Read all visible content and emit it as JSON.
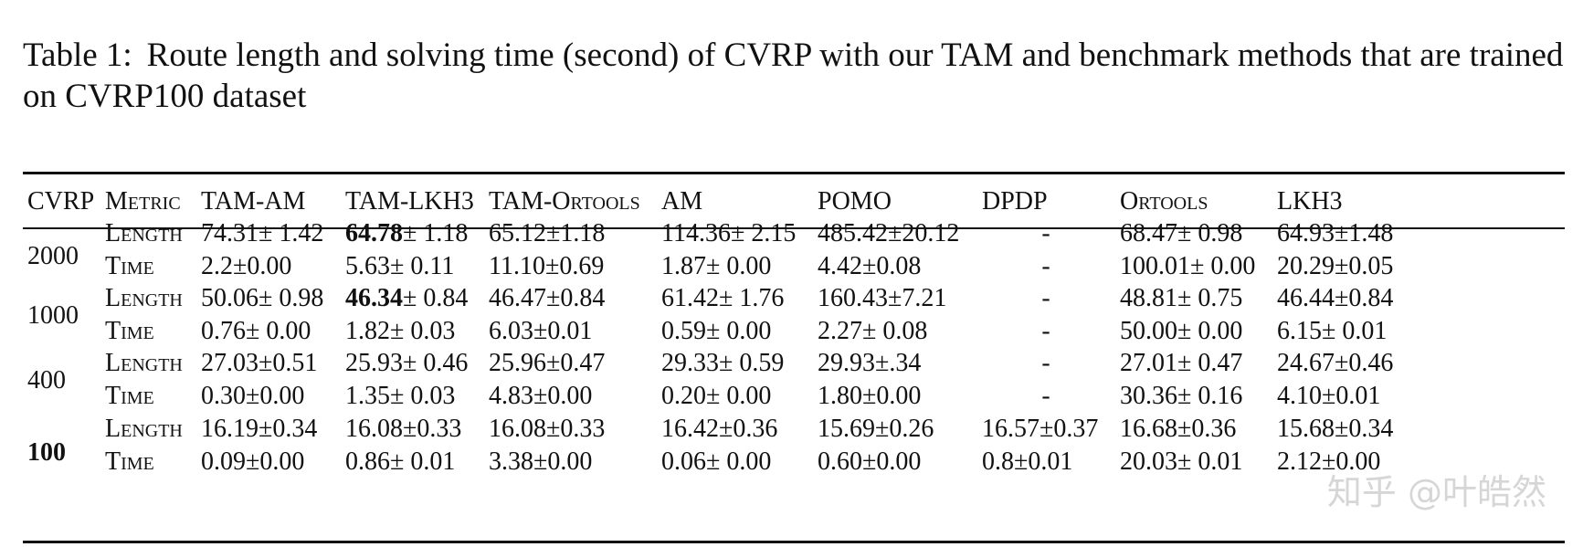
{
  "caption": {
    "label": "Table 1:",
    "text": "Route length and solving time (second) of CVRP with our TAM and benchmark methods that are trained on CVRP100 dataset"
  },
  "table": {
    "headers": [
      "CVRP",
      "Metric",
      "TAM-AM",
      "TAM-LKH3",
      "TAM-Ortools",
      "AM",
      "POMO",
      "DPDP",
      "Ortools",
      "LKH3"
    ],
    "groups": [
      {
        "size": "2000",
        "rows": [
          {
            "metric": "Length",
            "tam_am": "74.31± 1.42",
            "tam_lkh3": "64.78",
            "tam_lkh3_rest": "± 1.18",
            "tam_ortools": "65.12±1.18",
            "am": "114.36± 2.15",
            "pomo": "485.42±20.12",
            "dpdp": "-",
            "ortools": "68.47± 0.98",
            "lkh3": "64.93±1.48"
          },
          {
            "metric": "Time",
            "tam_am": "2.2±0.00",
            "tam_lkh3": "5.63± 0.11",
            "tam_ortools": "11.10±0.69",
            "am": "1.87± 0.00",
            "pomo": "4.42±0.08",
            "dpdp": "-",
            "ortools": "100.01± 0.00",
            "lkh3": "20.29±0.05"
          }
        ]
      },
      {
        "size": "1000",
        "rows": [
          {
            "metric": "Length",
            "tam_am": "50.06± 0.98",
            "tam_lkh3": "46.34",
            "tam_lkh3_rest": "± 0.84",
            "tam_ortools": "46.47±0.84",
            "am": "61.42± 1.76",
            "pomo": "160.43±7.21",
            "dpdp": "-",
            "ortools": "48.81± 0.75",
            "lkh3": "46.44±0.84"
          },
          {
            "metric": "Time",
            "tam_am": "0.76± 0.00",
            "tam_lkh3": "1.82± 0.03",
            "tam_ortools": "6.03±0.01",
            "am": "0.59± 0.00",
            "pomo": "2.27± 0.08",
            "dpdp": "-",
            "ortools": "50.00± 0.00",
            "lkh3": "6.15± 0.01"
          }
        ]
      },
      {
        "size": "400",
        "rows": [
          {
            "metric": "Length",
            "tam_am": "27.03±0.51",
            "tam_lkh3": "25.93± 0.46",
            "tam_ortools": "25.96±0.47",
            "am": "29.33± 0.59",
            "pomo": "29.93±.34",
            "dpdp": "-",
            "ortools": "27.01± 0.47",
            "lkh3": "24.67±0.46"
          },
          {
            "metric": "Time",
            "tam_am": "0.30±0.00",
            "tam_lkh3": "1.35± 0.03",
            "tam_ortools": "4.83±0.00",
            "am": "0.20± 0.00",
            "pomo": "1.80±0.00",
            "dpdp": "-",
            "ortools": "30.36± 0.16",
            "lkh3": "4.10±0.01"
          }
        ]
      },
      {
        "size": "100",
        "rows": [
          {
            "metric": "Length",
            "tam_am": "16.19±0.34",
            "tam_lkh3": "16.08±0.33",
            "tam_ortools": "16.08±0.33",
            "am": "16.42±0.36",
            "pomo": "15.69±0.26",
            "dpdp": "16.57±0.37",
            "ortools": "16.68±0.36",
            "lkh3": "15.68±0.34"
          },
          {
            "metric": "Time",
            "tam_am": "0.09±0.00",
            "tam_lkh3": "0.86± 0.01",
            "tam_ortools": "3.38±0.00",
            "am": "0.06± 0.00",
            "pomo": "0.60±0.00",
            "dpdp": "0.8±0.01",
            "ortools": "20.03± 0.01",
            "lkh3": "2.12±0.00"
          }
        ]
      }
    ]
  },
  "watermark": "知乎 @叶皓然"
}
